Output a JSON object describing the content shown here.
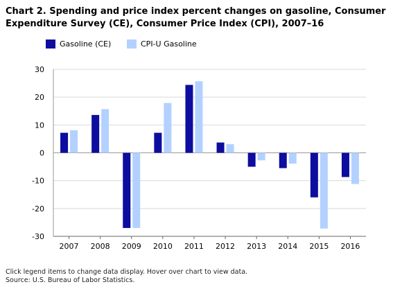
{
  "title_lines": [
    "Chart 2. Spending and price index percent changes on gasoline, Consumer",
    "Expenditure Survey (CE), Consumer Price Index (CPI), 2007–16"
  ],
  "legend": [
    {
      "label": "Gasoline (CE)",
      "color": "#0d0d9f"
    },
    {
      "label": "CPI-U Gasoline",
      "color": "#b3d1ff"
    }
  ],
  "chart_data": {
    "type": "bar",
    "categories": [
      "2007",
      "2008",
      "2009",
      "2010",
      "2011",
      "2012",
      "2013",
      "2014",
      "2015",
      "2016"
    ],
    "series": [
      {
        "name": "Gasoline (CE)",
        "color": "#0d0d9f",
        "values": [
          7.2,
          13.6,
          -27.0,
          7.2,
          24.4,
          3.7,
          -5.0,
          -5.5,
          -16.0,
          -8.7
        ]
      },
      {
        "name": "CPI-U Gasoline",
        "color": "#b3d1ff",
        "values": [
          8.1,
          15.7,
          -27.0,
          17.9,
          25.7,
          3.1,
          -2.7,
          -3.9,
          -27.2,
          -11.2
        ]
      }
    ],
    "ylim": [
      -30,
      30
    ],
    "yticks": [
      "30",
      "20",
      "10",
      "0",
      "-10",
      "-20",
      "-30"
    ],
    "grid": true,
    "legend_position": "top-left"
  },
  "footer": {
    "note": "Click legend items to change data display. Hover over chart to view data.",
    "source": "Source: U.S. Bureau of Labor Statistics."
  }
}
